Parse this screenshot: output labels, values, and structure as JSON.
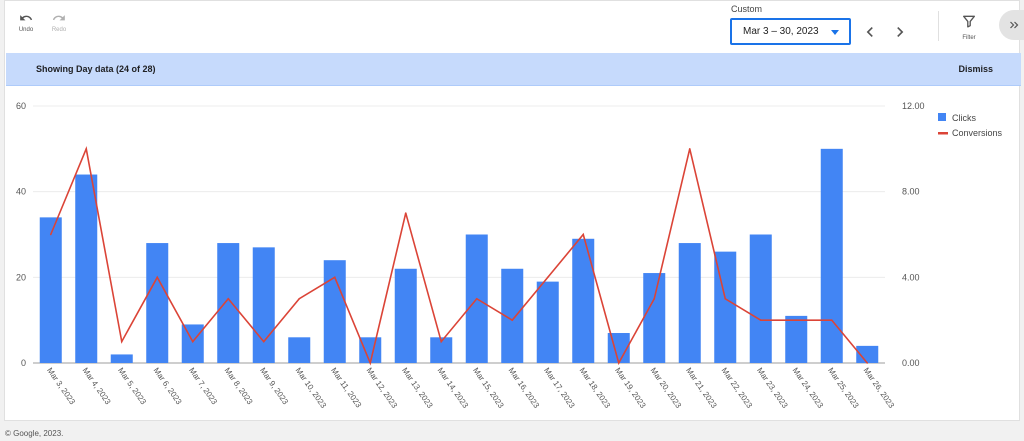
{
  "toolbar": {
    "undo_label": "Undo",
    "redo_label": "Redo",
    "custom_label": "Custom",
    "date_range": "Mar 3 – 30, 2023",
    "filter_label": "Filter"
  },
  "banner": {
    "text": "Showing Day data (24 of 28)",
    "dismiss_label": "Dismiss"
  },
  "footer": {
    "text": "© Google, 2023."
  },
  "chart_data": {
    "type": "bar",
    "categories": [
      "Mar 3, 2023",
      "Mar 4, 2023",
      "Mar 5, 2023",
      "Mar 6, 2023",
      "Mar 7, 2023",
      "Mar 8, 2023",
      "Mar 9, 2023",
      "Mar 10, 2023",
      "Mar 11, 2023",
      "Mar 12, 2023",
      "Mar 13, 2023",
      "Mar 14, 2023",
      "Mar 15, 2023",
      "Mar 16, 2023",
      "Mar 17, 2023",
      "Mar 18, 2023",
      "Mar 19, 2023",
      "Mar 20, 2023",
      "Mar 21, 2023",
      "Mar 22, 2023",
      "Mar 23, 2023",
      "Mar 24, 2023",
      "Mar 25, 2023",
      "Mar 26, 2023"
    ],
    "series": [
      {
        "name": "Clicks",
        "type": "bar",
        "axis": "left",
        "color": "#4285f4",
        "values": [
          34,
          44,
          2,
          28,
          9,
          28,
          27,
          6,
          24,
          6,
          22,
          6,
          30,
          22,
          19,
          29,
          7,
          21,
          28,
          26,
          30,
          11,
          50,
          4
        ]
      },
      {
        "name": "Conversions",
        "type": "line",
        "axis": "right",
        "color": "#db4437",
        "values": [
          6,
          10,
          1,
          4,
          1,
          3,
          1,
          3,
          4,
          0,
          7,
          1,
          3,
          2,
          4,
          6,
          0,
          3,
          10,
          3,
          2,
          2,
          2,
          0
        ]
      }
    ],
    "y_left": {
      "min": 0,
      "max": 60,
      "ticks": [
        "0",
        "20",
        "40",
        "60"
      ]
    },
    "y_right": {
      "min": 0,
      "max": 12,
      "ticks": [
        "0.00",
        "4.00",
        "8.00",
        "12.00"
      ]
    },
    "grid": true,
    "legend_position": "top-right"
  }
}
